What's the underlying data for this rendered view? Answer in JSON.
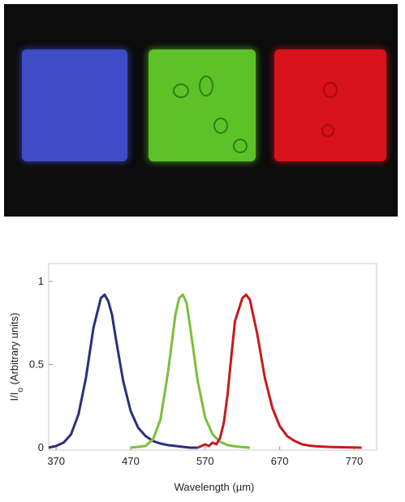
{
  "photo": {
    "swatches": [
      {
        "name": "blue",
        "color": "#3f4cc8"
      },
      {
        "name": "green",
        "color": "#5cc228"
      },
      {
        "name": "red",
        "color": "#d8121d"
      }
    ]
  },
  "chart_data": {
    "type": "line",
    "title": "",
    "xlabel": "Wavelength (µm)",
    "ylabel_main": "I/I",
    "ylabel_sub": "o",
    "ylabel_rest": " (Arbitrary units)",
    "xlim": [
      360,
      800
    ],
    "ylim": [
      0,
      1
    ],
    "xticks": [
      370,
      470,
      570,
      670,
      770
    ],
    "yticks": [
      0,
      0.5,
      1
    ],
    "ytick_labels": [
      "0",
      "0.5",
      "1"
    ],
    "grid": false,
    "legend": "none",
    "series": [
      {
        "color": "#2c2f7c",
        "x": [
          360,
          370,
          380,
          390,
          400,
          410,
          420,
          430,
          435,
          440,
          445,
          450,
          460,
          470,
          480,
          490,
          500,
          510,
          520,
          530,
          540,
          550,
          560
        ],
        "y": [
          0.0,
          0.01,
          0.03,
          0.08,
          0.2,
          0.42,
          0.72,
          0.9,
          0.92,
          0.88,
          0.8,
          0.66,
          0.4,
          0.22,
          0.12,
          0.07,
          0.04,
          0.025,
          0.015,
          0.01,
          0.005,
          0.0,
          0.0
        ]
      },
      {
        "color": "#7bbf3a",
        "x": [
          470,
          480,
          490,
          500,
          510,
          520,
          530,
          535,
          540,
          545,
          550,
          560,
          570,
          580,
          590,
          600,
          610,
          620,
          630
        ],
        "y": [
          0.0,
          0.005,
          0.01,
          0.05,
          0.17,
          0.45,
          0.8,
          0.9,
          0.92,
          0.87,
          0.72,
          0.4,
          0.18,
          0.08,
          0.035,
          0.015,
          0.008,
          0.004,
          0.0
        ]
      },
      {
        "color": "#c81a1a",
        "x": [
          560,
          570,
          575,
          580,
          585,
          590,
          595,
          600,
          605,
          610,
          620,
          625,
          630,
          640,
          650,
          660,
          670,
          680,
          690,
          700,
          710,
          720,
          740,
          760,
          780
        ],
        "y": [
          0.0,
          0.02,
          0.01,
          0.03,
          0.02,
          0.06,
          0.15,
          0.32,
          0.55,
          0.76,
          0.9,
          0.92,
          0.89,
          0.68,
          0.42,
          0.24,
          0.13,
          0.07,
          0.04,
          0.02,
          0.012,
          0.008,
          0.004,
          0.002,
          0.0
        ]
      }
    ]
  }
}
